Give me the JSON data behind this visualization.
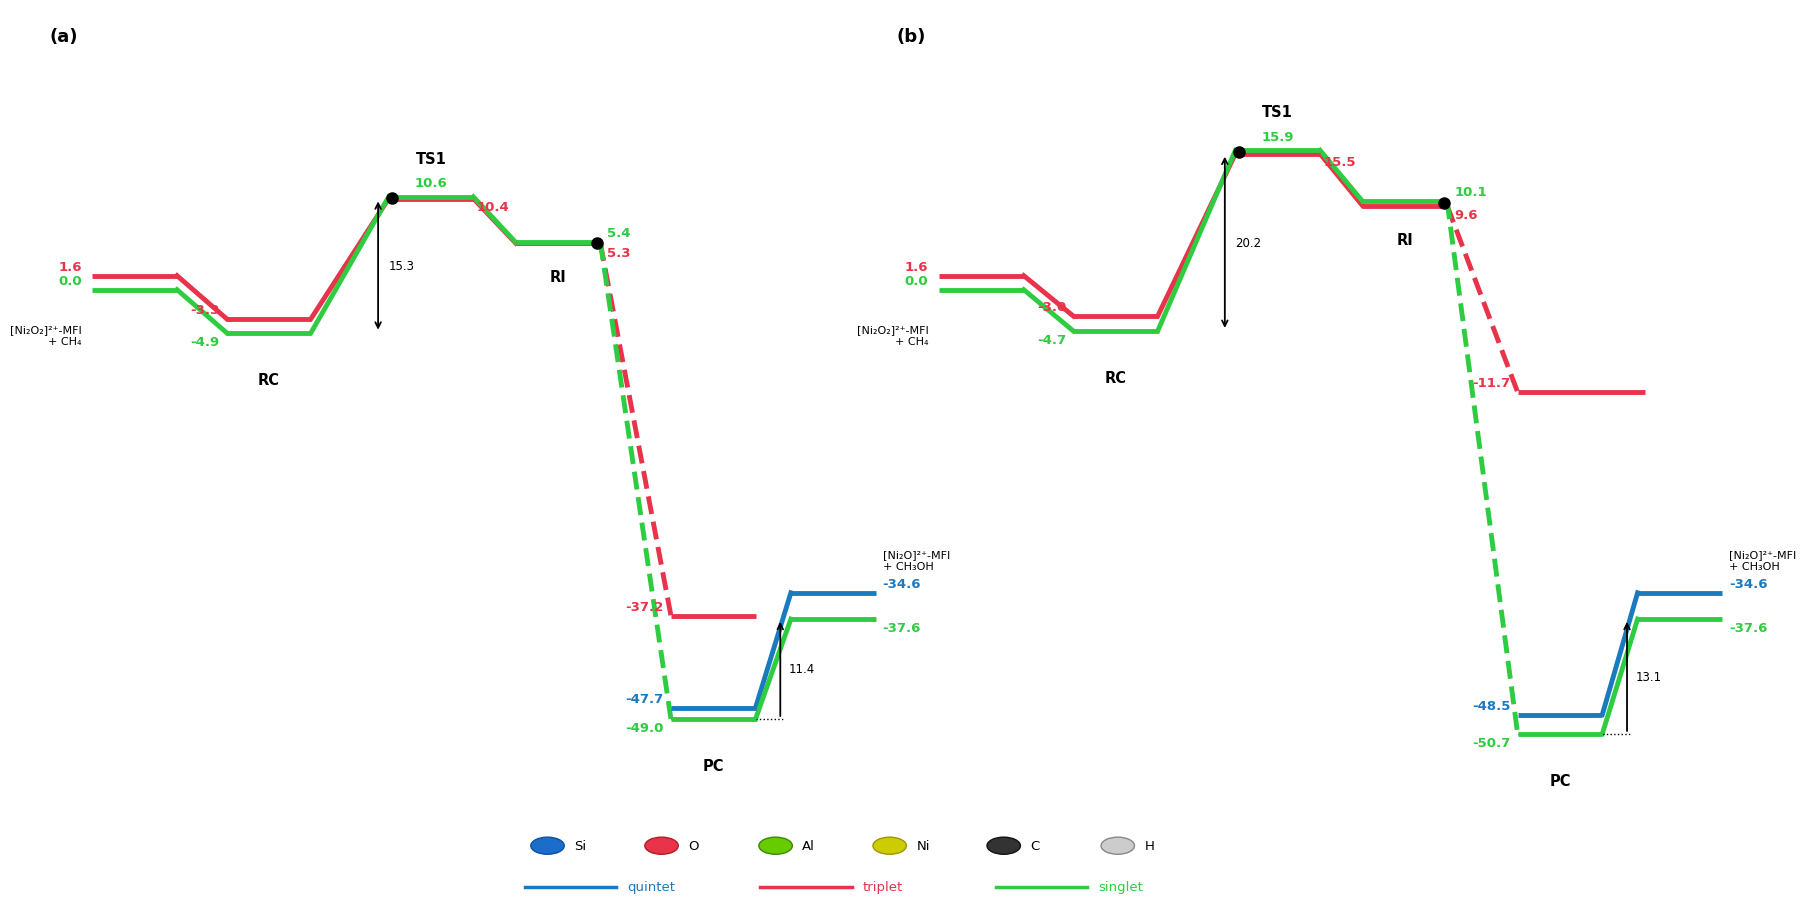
{
  "colors": {
    "triplet": "#e8334a",
    "singlet": "#2ecc40",
    "quintet": "#1a7abf",
    "black": "#000000",
    "white": "#ffffff"
  },
  "panel_a": {
    "reactant": {
      "triplet": 1.6,
      "singlet": 0.0
    },
    "RC": {
      "triplet": -3.3,
      "singlet": -4.9,
      "label": "RC"
    },
    "TS1": {
      "triplet": 10.4,
      "singlet": 10.6,
      "label": "TS1"
    },
    "RI": {
      "triplet": 5.3,
      "singlet": 5.4,
      "label": "RI"
    },
    "PC": {
      "triplet": -37.2,
      "singlet": -49.0,
      "quintet": -47.7,
      "label": "PC"
    },
    "product": {
      "quintet": -34.6,
      "singlet": -37.6
    },
    "gap_rc_ts": "15.3",
    "gap_pc": "11.4",
    "reactant_label": "[Ni₂O₂]²⁺-MFI\n+ CH₄",
    "product_label": "[Ni₂O]²⁺-MFI\n+ CH₃OH"
  },
  "panel_b": {
    "reactant": {
      "triplet": 1.6,
      "singlet": 0.0
    },
    "RC": {
      "triplet": -3.0,
      "singlet": -4.7,
      "label": "RC"
    },
    "TS1": {
      "triplet": 15.5,
      "singlet": 15.9,
      "label": "TS1"
    },
    "RI": {
      "triplet": 9.6,
      "singlet": 10.1,
      "label": "RI"
    },
    "triplet_end": {
      "triplet": -11.7
    },
    "PC": {
      "singlet": -50.7,
      "quintet": -48.5,
      "label": "PC"
    },
    "product": {
      "quintet": -34.6,
      "singlet": -37.6
    },
    "gap_rc_ts": "20.2",
    "gap_pc": "13.1",
    "reactant_label": "[Ni₂O₂]²⁺-MFI\n+ CH₄",
    "product_label": "[Ni₂O]²⁺-MFI\n+ CH₃OH"
  },
  "atom_legend": {
    "names": [
      "Si",
      "O",
      "Al",
      "Ni",
      "C",
      "H"
    ],
    "colors": [
      "#1a6dc8",
      "#e8334a",
      "#66cc00",
      "#cccc00",
      "#333333",
      "#cccccc"
    ]
  },
  "line_legend": {
    "names": [
      "quintet",
      "triplet",
      "singlet"
    ],
    "colors": [
      "#1a7abf",
      "#e8334a",
      "#2ecc40"
    ]
  }
}
